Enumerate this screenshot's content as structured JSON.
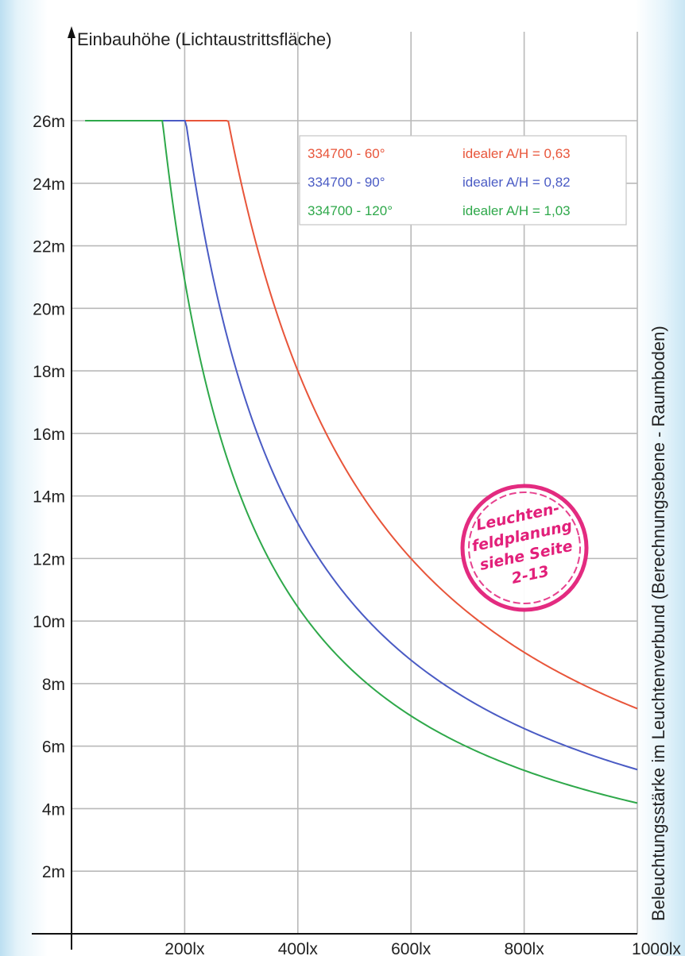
{
  "chart_data": {
    "type": "line",
    "title": "",
    "ylabel": "Einbauhöhe (Lichtaustrittsfläche)",
    "xlabel": "Beleuchtungsstärke im Leuchtenverbund (Berechnungsebene - Raumboden)",
    "x_ticks": [
      "200lx",
      "400lx",
      "600lx",
      "800lx",
      "1000lx"
    ],
    "y_ticks": [
      "2m",
      "4m",
      "6m",
      "8m",
      "10m",
      "12m",
      "14m",
      "16m",
      "18m",
      "20m",
      "22m",
      "24m",
      "26m"
    ],
    "xlim": [
      0,
      1000
    ],
    "ylim": [
      0,
      26
    ],
    "grid": true,
    "legend_position": "top-right",
    "series": [
      {
        "name": "334700 - 60°",
        "note": "idealer A/H = 0,63",
        "color": "#e8553a",
        "k": 7200,
        "x_min": 73
      },
      {
        "name": "334700 - 90°",
        "note": "idealer A/H = 0,82",
        "color": "#4a5bc4",
        "k": 5250,
        "x_min": 40
      },
      {
        "name": "334700 - 120°",
        "note": "idealer A/H = 1,03",
        "color": "#2ea84a",
        "k": 4180,
        "x_min": 24
      }
    ]
  },
  "stamp": {
    "lines": [
      "Leuchten-",
      "feldplanung",
      "siehe Seite",
      "2-13"
    ],
    "color": "#e2207a"
  }
}
